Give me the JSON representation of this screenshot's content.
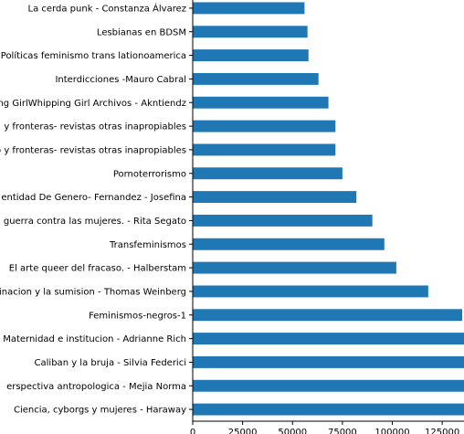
{
  "chart_data": {
    "type": "bar",
    "orientation": "horizontal",
    "bar_color": "#1f77b4",
    "categories": [
      "La cerda punk - Constanza Álvarez",
      "Lesbianas en BDSM",
      "Políticas feminismo trans lationoamerica",
      "Interdicciones -Mauro Cabral",
      "ng GirlWhipping Girl Archivos - Akntiendz",
      "y fronteras- revistas otras inapropiables",
      "o y fronteras- revistas otras inapropiables",
      "Pornoterrorismo",
      "entidad De Genero- Fernandez - Josefina",
      "guerra contra las mujeres. - Rita Segato",
      "Transfeminismos",
      "El arte queer del fracaso. - Halberstam",
      "inacion y la sumision - Thomas Weinberg",
      "Feminismos-negros-1",
      "Maternidad e institucion - Adrianne Rich",
      "Caliban y la bruja - Silvia Federici",
      "erspectiva antropologica - Mejia Norma",
      "Ciencia, cyborgs y mujeres - Haraway"
    ],
    "values": [
      56000,
      57500,
      58000,
      63000,
      68000,
      71500,
      71500,
      75000,
      82000,
      90000,
      96000,
      102000,
      118000,
      135000,
      136000,
      137000,
      138000,
      140000
    ],
    "xlim": [
      0,
      135000
    ],
    "xticks": [
      0,
      25000,
      50000,
      75000,
      100000,
      125000
    ],
    "xtick_labels": [
      "0",
      "25000",
      "50000",
      "75000",
      "100000",
      "125000"
    ],
    "title": "",
    "xlabel": "",
    "ylabel": "",
    "grid": false,
    "legend": "none"
  }
}
